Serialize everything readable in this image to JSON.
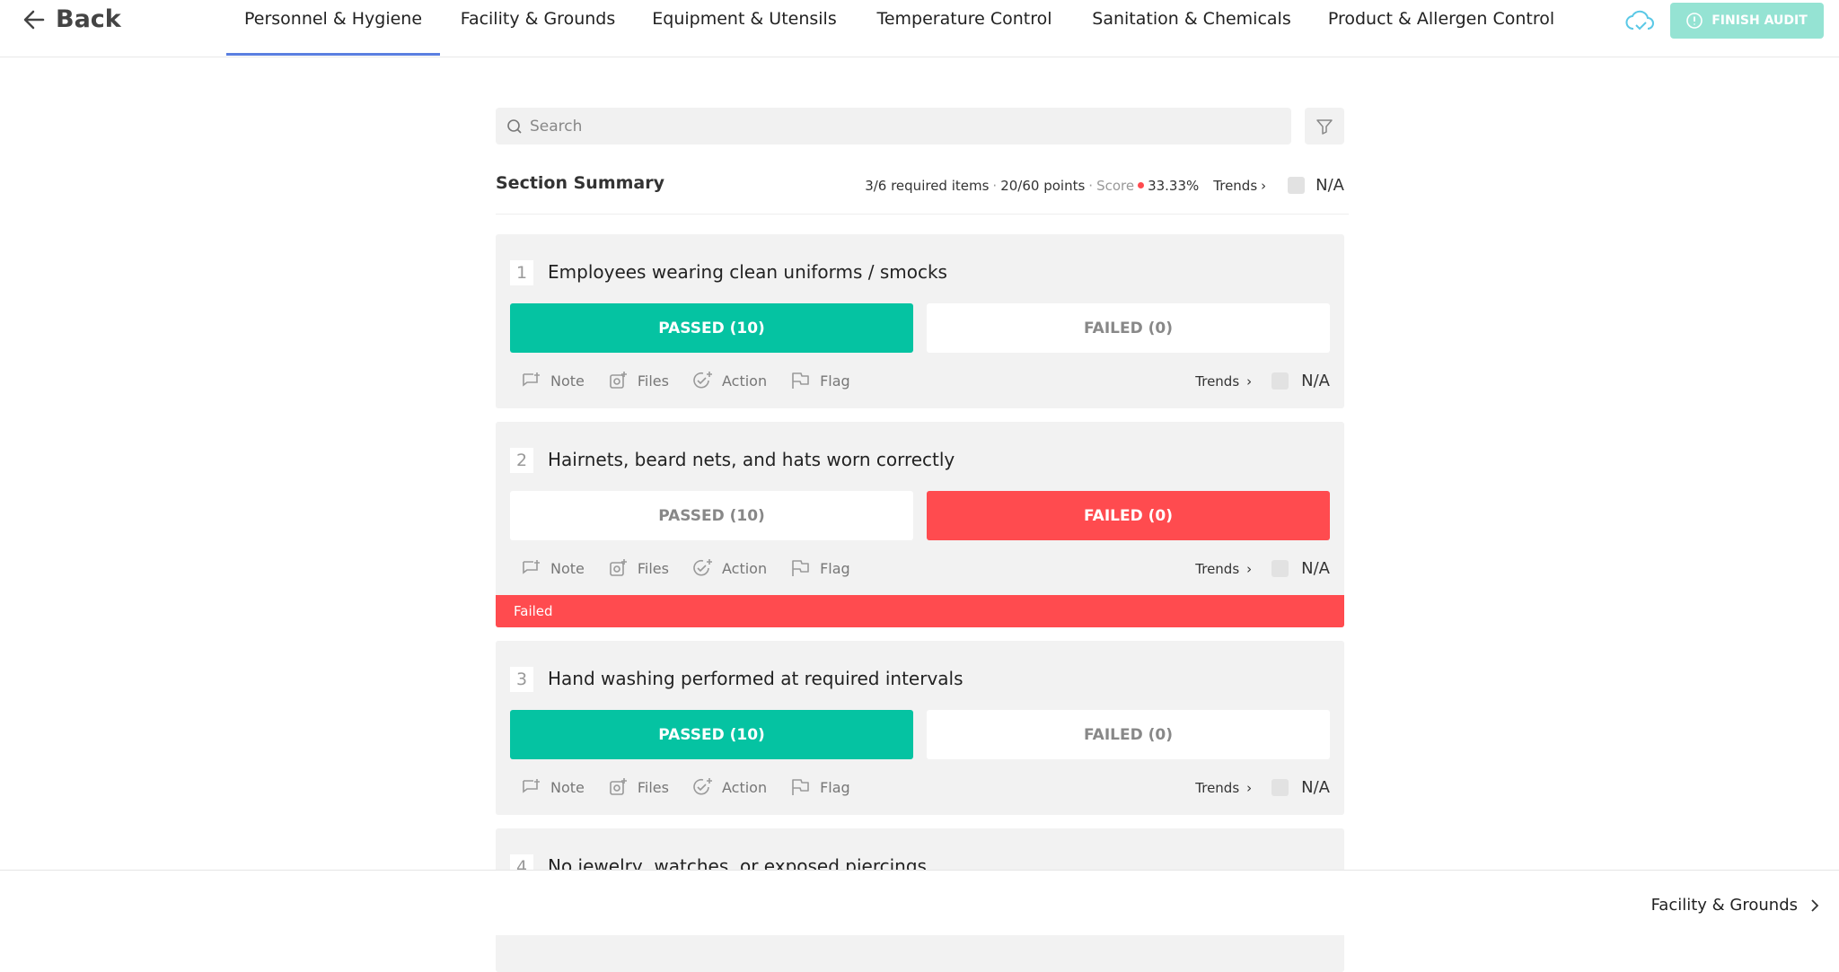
{
  "header": {
    "back": "Back",
    "tabs": [
      "Personnel & Hygiene",
      "Facility & Grounds",
      "Equipment & Utensils",
      "Temperature Control",
      "Sanitation & Chemicals",
      "Product & Allergen Control"
    ],
    "active_tab": 0,
    "finish_button": "FINISH AUDIT"
  },
  "search": {
    "placeholder": "Search"
  },
  "section_summary": {
    "title": "Section Summary",
    "required_items": "3/6 required items",
    "points": "20/60 points",
    "score_label": "Score",
    "score_value": "33.33%",
    "trends": "Trends",
    "na": "N/A"
  },
  "question_controls": {
    "note": "Note",
    "files": "Files",
    "action": "Action",
    "flag": "Flag",
    "trends": "Trends",
    "na": "N/A"
  },
  "items": [
    {
      "number": "1",
      "title": "Employees wearing clean uniforms / smocks",
      "passed": "PASSED (10)",
      "failed": "FAILED (0)",
      "state": "passed"
    },
    {
      "number": "2",
      "title": "Hairnets, beard nets, and hats worn correctly",
      "passed": "PASSED (10)",
      "failed": "FAILED (0)",
      "state": "failed",
      "banner": "Failed"
    },
    {
      "number": "3",
      "title": "Hand washing performed at required intervals",
      "passed": "PASSED (10)",
      "failed": "FAILED (0)",
      "state": "passed"
    },
    {
      "number": "4",
      "title": "No jewelry, watches, or exposed piercings"
    }
  ],
  "footer": {
    "next": "Facility & Grounds"
  }
}
